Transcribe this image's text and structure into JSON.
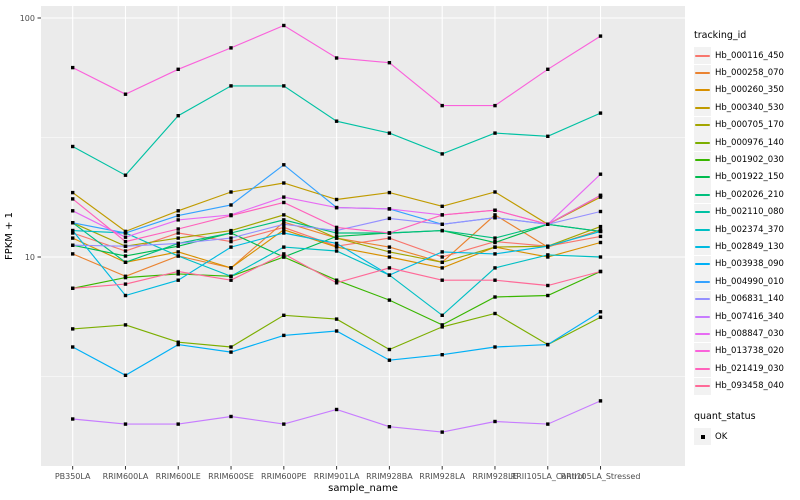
{
  "chart_data": {
    "type": "line",
    "title": "",
    "xlabel": "sample_name",
    "ylabel": "FPKM + 1",
    "log_scale_y": true,
    "legend_position": "right",
    "grid": true,
    "panel_background": "#EBEBEB",
    "gridline_color": "#FFFFFF",
    "axis_text_color": "#4D4D4D",
    "tick_mark_color": "#333333",
    "point_color": "#000000",
    "ylim": [
      1.35,
      112
    ],
    "x_categories": [
      "PB350LA",
      "RRIM600LA",
      "RRIM600LE",
      "RRIM600SE",
      "RRIM600PE",
      "RRIM901LA",
      "RRIM928BA",
      "RRIM928LA",
      "RRIM928LE",
      "RRII105LA_Control",
      "RRII105LA_Stressed"
    ],
    "y_ticks": [
      {
        "label": "100",
        "value": 100
      },
      {
        "label": "10",
        "value": 10
      }
    ],
    "y_minor_gridlines": [
      31.62,
      3.162
    ],
    "series": [
      {
        "name": "Hb_000116_450",
        "color": "#F8766D",
        "values": [
          12.6,
          10.6,
          12.6,
          11.6,
          13.3,
          11.1,
          12.0,
          10.0,
          11.6,
          11.1,
          12.2
        ]
      },
      {
        "name": "Hb_000258_070",
        "color": "#EA8331",
        "values": [
          10.3,
          8.3,
          10.1,
          9.0,
          14.0,
          12.0,
          11.0,
          9.5,
          15.0,
          11.0,
          13.0
        ]
      },
      {
        "name": "Hb_000260_350",
        "color": "#D89000",
        "values": [
          12.0,
          9.5,
          10.5,
          9.0,
          13.0,
          11.0,
          10.0,
          9.0,
          11.0,
          10.0,
          11.5
        ]
      },
      {
        "name": "Hb_000340_530",
        "color": "#C09B00",
        "values": [
          18.6,
          12.8,
          15.6,
          18.7,
          20.4,
          17.4,
          18.6,
          16.3,
          18.7,
          13.7,
          17.8
        ]
      },
      {
        "name": "Hb_000705_170",
        "color": "#A3A500",
        "values": [
          13.9,
          11.1,
          12.0,
          12.9,
          15.0,
          12.0,
          10.5,
          9.5,
          11.0,
          11.1,
          13.4
        ]
      },
      {
        "name": "Hb_000976_140",
        "color": "#7CAE00",
        "values": [
          5.0,
          5.2,
          4.4,
          4.2,
          5.7,
          5.5,
          4.1,
          5.1,
          5.8,
          4.3,
          5.6
        ]
      },
      {
        "name": "Hb_001902_030",
        "color": "#39B600",
        "values": [
          7.4,
          8.2,
          8.5,
          8.3,
          10.0,
          8.0,
          6.6,
          5.2,
          6.8,
          6.9,
          8.7
        ]
      },
      {
        "name": "Hb_001922_150",
        "color": "#00BB4E",
        "values": [
          11.2,
          10.1,
          11.1,
          12.6,
          10.0,
          12.2,
          12.6,
          12.9,
          11.5,
          13.7,
          12.8
        ]
      },
      {
        "name": "Hb_002026_210",
        "color": "#00BF7D",
        "values": [
          13.9,
          9.5,
          11.4,
          12.6,
          14.3,
          12.6,
          12.6,
          12.9,
          12.0,
          13.7,
          12.8
        ]
      },
      {
        "name": "Hb_002110_080",
        "color": "#00C1A3",
        "values": [
          29,
          22,
          39,
          52,
          52,
          37,
          33,
          27,
          33,
          32,
          40
        ]
      },
      {
        "name": "Hb_002374_370",
        "color": "#00BFC4",
        "values": [
          12.9,
          12.6,
          10.1,
          8.3,
          11.0,
          10.6,
          8.4,
          5.7,
          9.0,
          10.2,
          10.0
        ]
      },
      {
        "name": "Hb_002849_130",
        "color": "#00BAE0",
        "values": [
          12.9,
          6.9,
          8.0,
          11.0,
          12.6,
          11.4,
          8.4,
          10.5,
          10.3,
          11.1,
          12.8
        ]
      },
      {
        "name": "Hb_003938_090",
        "color": "#00B0F6",
        "values": [
          4.2,
          3.2,
          4.3,
          4.0,
          4.7,
          4.9,
          3.7,
          3.9,
          4.2,
          4.3,
          5.9
        ]
      },
      {
        "name": "Hb_004990_010",
        "color": "#35A2FF",
        "values": [
          13.9,
          12.6,
          14.9,
          16.5,
          24.3,
          16.1,
          15.9,
          13.7,
          14.6,
          13.7,
          18.1
        ]
      },
      {
        "name": "Hb_006831_140",
        "color": "#9590FF",
        "values": [
          11.2,
          11.1,
          11.4,
          12.0,
          13.7,
          12.9,
          14.5,
          13.7,
          14.6,
          13.7,
          15.5
        ]
      },
      {
        "name": "Hb_007416_340",
        "color": "#C77CFF",
        "values": [
          2.1,
          2.0,
          2.0,
          2.15,
          2.0,
          2.3,
          1.95,
          1.85,
          2.05,
          2.0,
          2.5
        ]
      },
      {
        "name": "Hb_008847_030",
        "color": "#E76BF3",
        "values": [
          15.6,
          12.1,
          14.3,
          15.0,
          17.8,
          16.1,
          15.9,
          15.0,
          15.7,
          13.7,
          22.2
        ]
      },
      {
        "name": "Hb_013738_020",
        "color": "#FA62DB",
        "values": [
          62,
          48,
          61,
          75,
          93,
          68,
          65,
          43,
          43,
          61,
          84
        ]
      },
      {
        "name": "Hb_021419_030",
        "color": "#FF62BC",
        "values": [
          17.5,
          11.6,
          13.1,
          14.9,
          16.9,
          13.3,
          12.6,
          15.0,
          15.7,
          13.7,
          18.1
        ]
      },
      {
        "name": "Hb_093458_040",
        "color": "#FF6A98",
        "values": [
          7.4,
          7.7,
          8.7,
          8.0,
          10.3,
          7.8,
          9.0,
          8.0,
          8.0,
          7.6,
          8.7
        ]
      }
    ]
  },
  "legend": {
    "tracking_title": "tracking_id",
    "quant_title": "quant_status",
    "quant_items": [
      {
        "label": "OK",
        "marker": "black-square"
      }
    ]
  }
}
